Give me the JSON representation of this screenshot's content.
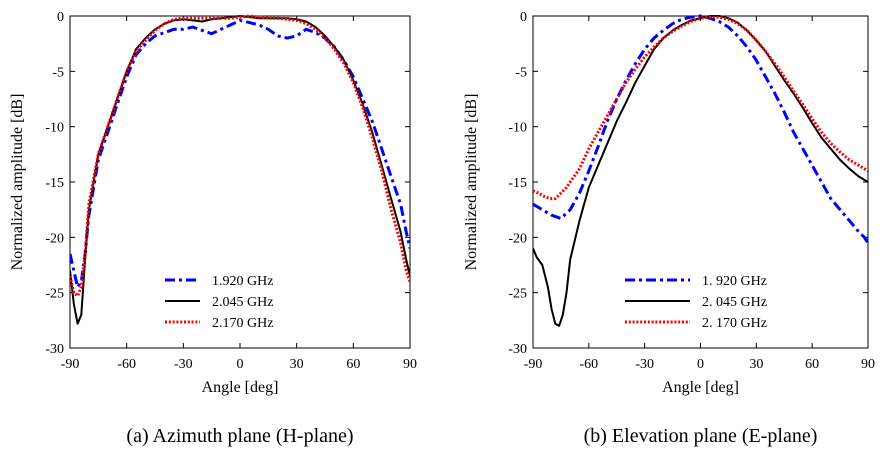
{
  "chart_data": [
    {
      "type": "line",
      "caption": "(a) Azimuth plane (H-plane)",
      "xlabel": "Angle [deg]",
      "ylabel": "Normalized amplitude [dB]",
      "xlim": [
        -90,
        90
      ],
      "ylim": [
        -30,
        0
      ],
      "xticks": [
        -90,
        -60,
        -30,
        0,
        30,
        60,
        90
      ],
      "yticks": [
        0,
        -5,
        -10,
        -15,
        -20,
        -25,
        -30
      ],
      "grid": false,
      "legend_position": "bottom-center",
      "series": [
        {
          "name": "1.920 GHz",
          "color": "#0000ff",
          "style": "dashdot",
          "x": [
            -90,
            -88,
            -86,
            -84,
            -82,
            -80,
            -75,
            -70,
            -65,
            -60,
            -55,
            -50,
            -45,
            -40,
            -35,
            -30,
            -25,
            -20,
            -15,
            -10,
            -5,
            0,
            5,
            10,
            15,
            20,
            25,
            30,
            35,
            40,
            45,
            50,
            55,
            60,
            65,
            70,
            75,
            80,
            85,
            88,
            90
          ],
          "y": [
            -21.5,
            -23,
            -24.5,
            -24,
            -21.5,
            -18,
            -13,
            -10.5,
            -8,
            -5.5,
            -3.5,
            -2.5,
            -1.8,
            -1.5,
            -1.2,
            -1.2,
            -1.0,
            -1.3,
            -1.6,
            -1.2,
            -0.8,
            -0.4,
            -0.6,
            -0.8,
            -1.2,
            -1.8,
            -2.0,
            -1.8,
            -1.2,
            -1.5,
            -2.0,
            -2.8,
            -4.0,
            -5.5,
            -7.5,
            -9.5,
            -12.0,
            -14.5,
            -17.0,
            -19.5,
            -21.0
          ]
        },
        {
          "name": "2.045 GHz",
          "color": "#000000",
          "style": "solid",
          "x": [
            -90,
            -88,
            -86,
            -84,
            -82,
            -80,
            -75,
            -70,
            -65,
            -60,
            -55,
            -50,
            -45,
            -40,
            -35,
            -30,
            -25,
            -20,
            -15,
            -10,
            -5,
            0,
            5,
            10,
            15,
            20,
            25,
            30,
            35,
            40,
            45,
            50,
            55,
            60,
            65,
            70,
            75,
            80,
            85,
            88,
            90
          ],
          "y": [
            -23.0,
            -26.0,
            -27.8,
            -27.0,
            -22.0,
            -17.5,
            -12.5,
            -10.0,
            -7.5,
            -5.0,
            -3.0,
            -2.0,
            -1.2,
            -0.7,
            -0.4,
            -0.3,
            -0.4,
            -0.5,
            -0.3,
            -0.2,
            -0.1,
            0.0,
            -0.1,
            -0.2,
            -0.2,
            -0.2,
            -0.2,
            -0.3,
            -0.5,
            -1.0,
            -1.8,
            -2.8,
            -4.0,
            -5.8,
            -8.0,
            -10.5,
            -13.5,
            -16.5,
            -19.5,
            -22.0,
            -23.5
          ]
        },
        {
          "name": "2.170 GHz",
          "color": "#ff0000",
          "style": "dotted",
          "x": [
            -90,
            -88,
            -86,
            -84,
            -82,
            -80,
            -75,
            -70,
            -65,
            -60,
            -55,
            -50,
            -45,
            -40,
            -35,
            -30,
            -25,
            -20,
            -15,
            -10,
            -5,
            0,
            5,
            10,
            15,
            20,
            25,
            30,
            35,
            40,
            45,
            50,
            55,
            60,
            65,
            70,
            75,
            80,
            85,
            88,
            90
          ],
          "y": [
            -23.5,
            -25.0,
            -25.3,
            -24.5,
            -21.5,
            -17.0,
            -12.5,
            -10.0,
            -7.5,
            -5.0,
            -3.2,
            -2.2,
            -1.3,
            -0.7,
            -0.3,
            -0.2,
            -0.2,
            -0.2,
            -0.2,
            -0.2,
            -0.2,
            -0.1,
            0.0,
            -0.1,
            -0.2,
            -0.2,
            -0.3,
            -0.4,
            -0.7,
            -1.2,
            -2.0,
            -3.0,
            -4.3,
            -6.0,
            -8.3,
            -11.0,
            -14.0,
            -17.5,
            -20.5,
            -23.0,
            -24.0
          ]
        }
      ]
    },
    {
      "type": "line",
      "caption": "(b) Elevation plane (E-plane)",
      "xlabel": "Angle [deg]",
      "ylabel": "Normalized amplitude [dB]",
      "xlim": [
        -90,
        90
      ],
      "ylim": [
        -30,
        0
      ],
      "xticks": [
        -90,
        -60,
        -30,
        0,
        30,
        60,
        90
      ],
      "yticks": [
        0,
        -5,
        -10,
        -15,
        -20,
        -25,
        -30
      ],
      "grid": false,
      "legend_position": "bottom-center",
      "series": [
        {
          "name": "1. 920 GHz",
          "color": "#0000ff",
          "style": "dashdot",
          "x": [
            -90,
            -85,
            -80,
            -75,
            -70,
            -65,
            -60,
            -55,
            -50,
            -45,
            -40,
            -35,
            -30,
            -25,
            -20,
            -15,
            -10,
            -5,
            0,
            5,
            10,
            15,
            20,
            25,
            30,
            35,
            40,
            45,
            50,
            55,
            60,
            65,
            70,
            75,
            80,
            85,
            88,
            90
          ],
          "y": [
            -17.0,
            -17.5,
            -18.0,
            -18.3,
            -17.5,
            -16.0,
            -14.0,
            -11.8,
            -9.5,
            -7.5,
            -5.8,
            -4.3,
            -3.0,
            -2.0,
            -1.3,
            -0.7,
            -0.3,
            -0.1,
            0.0,
            -0.2,
            -0.5,
            -1.0,
            -1.8,
            -2.8,
            -4.0,
            -5.5,
            -7.0,
            -8.7,
            -10.5,
            -12.0,
            -13.5,
            -15.0,
            -16.5,
            -17.5,
            -18.5,
            -19.5,
            -20.0,
            -20.5
          ]
        },
        {
          "name": "2. 045 GHz",
          "color": "#000000",
          "style": "solid",
          "x": [
            -90,
            -88,
            -85,
            -82,
            -80,
            -78,
            -76,
            -74,
            -72,
            -70,
            -65,
            -60,
            -55,
            -50,
            -45,
            -40,
            -35,
            -30,
            -25,
            -20,
            -15,
            -10,
            -5,
            0,
            5,
            10,
            15,
            20,
            25,
            30,
            35,
            40,
            45,
            50,
            55,
            60,
            65,
            70,
            75,
            80,
            85,
            90
          ],
          "y": [
            -21.0,
            -21.8,
            -22.5,
            -24.5,
            -26.5,
            -27.8,
            -28.0,
            -27.0,
            -25.0,
            -22.0,
            -18.5,
            -15.5,
            -13.5,
            -11.5,
            -9.5,
            -7.8,
            -6.0,
            -4.5,
            -3.0,
            -2.0,
            -1.3,
            -0.8,
            -0.4,
            -0.2,
            0.0,
            0.0,
            -0.2,
            -0.6,
            -1.3,
            -2.2,
            -3.2,
            -4.5,
            -5.8,
            -7.0,
            -8.3,
            -9.7,
            -11.0,
            -12.0,
            -13.0,
            -13.8,
            -14.5,
            -15.0
          ]
        },
        {
          "name": "2. 170 GHz",
          "color": "#ff0000",
          "style": "dotted",
          "x": [
            -90,
            -87,
            -84,
            -81,
            -78,
            -75,
            -72,
            -70,
            -65,
            -60,
            -55,
            -50,
            -45,
            -40,
            -35,
            -30,
            -25,
            -20,
            -15,
            -10,
            -5,
            0,
            5,
            10,
            15,
            20,
            25,
            30,
            35,
            40,
            45,
            50,
            55,
            60,
            65,
            70,
            75,
            80,
            85,
            90
          ],
          "y": [
            -15.8,
            -16.0,
            -16.3,
            -16.5,
            -16.5,
            -16.0,
            -15.5,
            -15.0,
            -13.8,
            -12.0,
            -10.5,
            -9.0,
            -7.5,
            -6.0,
            -4.8,
            -3.7,
            -2.8,
            -2.0,
            -1.4,
            -0.9,
            -0.5,
            -0.2,
            -0.1,
            -0.1,
            -0.3,
            -0.7,
            -1.3,
            -2.2,
            -3.2,
            -4.3,
            -5.5,
            -6.8,
            -8.0,
            -9.3,
            -10.5,
            -11.5,
            -12.3,
            -13.0,
            -13.5,
            -14.0
          ]
        }
      ]
    }
  ]
}
